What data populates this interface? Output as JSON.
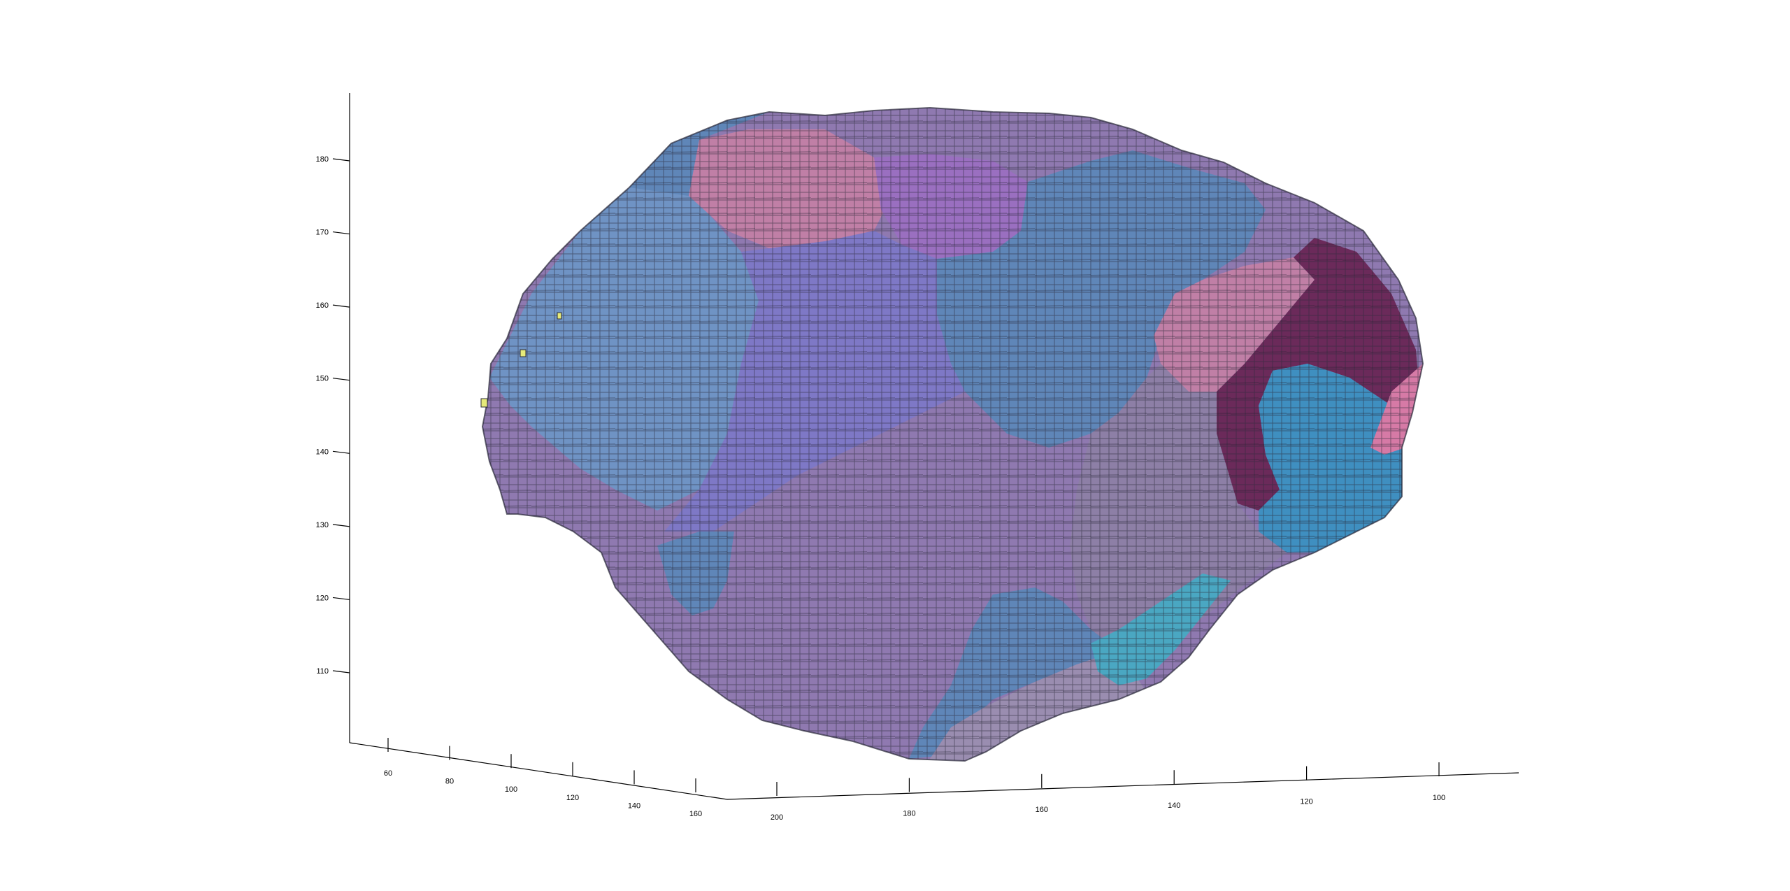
{
  "figure": {
    "background": "#ffffff",
    "axis_color": "#000000"
  },
  "chart_data": {
    "type": "3d-voxel",
    "title": "",
    "xlabel": "",
    "ylabel": "",
    "zlabel": "",
    "grid": false,
    "legend": "none",
    "x_axis": {
      "ticks": [
        60,
        80,
        100,
        120,
        140,
        160
      ]
    },
    "y_axis": {
      "ticks": [
        200,
        180,
        160,
        140,
        120,
        100
      ]
    },
    "z_axis": {
      "ticks": [
        110,
        120,
        130,
        140,
        150,
        160,
        170,
        180
      ]
    },
    "edge_color": "#2b2b3a",
    "region_colors": [
      "#6f93c4",
      "#7e78c6",
      "#8f79b0",
      "#c07fa6",
      "#5f86b8",
      "#9a6fc0",
      "#6b2a5a",
      "#3f8fc0",
      "#8d7fa6",
      "#9a8db0",
      "#4aa7c2",
      "#d67aa6",
      "#e6ea7a"
    ]
  }
}
